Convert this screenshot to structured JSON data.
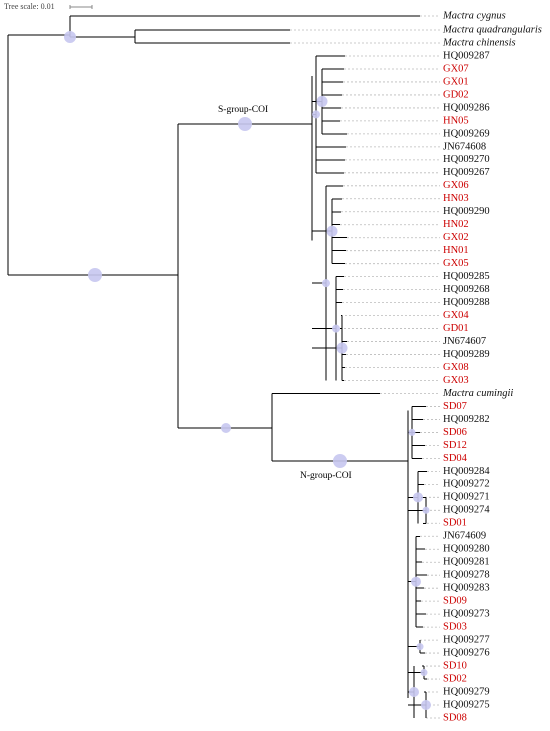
{
  "scale": {
    "label": "Tree scale: 0.01"
  },
  "colors": {
    "highlight": "#cc0000",
    "normal": "#111111",
    "node": "#c6c7ef"
  },
  "groups": {
    "s": "S-group-COI",
    "n": "N-group-COI"
  },
  "leaves": [
    {
      "name": "Mactra cygnus",
      "color": "black",
      "italic": true
    },
    {
      "name": "Mactra quadrangularis",
      "color": "black",
      "italic": true
    },
    {
      "name": "Mactra chinensis",
      "color": "black",
      "italic": true
    },
    {
      "name": "HQ009287",
      "color": "black"
    },
    {
      "name": "GX07",
      "color": "red"
    },
    {
      "name": "GX01",
      "color": "red"
    },
    {
      "name": "GD02",
      "color": "red"
    },
    {
      "name": "HQ009286",
      "color": "black"
    },
    {
      "name": "HN05",
      "color": "red"
    },
    {
      "name": "HQ009269",
      "color": "black"
    },
    {
      "name": "JN674608",
      "color": "black"
    },
    {
      "name": "HQ009270",
      "color": "black"
    },
    {
      "name": "HQ009267",
      "color": "black"
    },
    {
      "name": "GX06",
      "color": "red"
    },
    {
      "name": "HN03",
      "color": "red"
    },
    {
      "name": "HQ009290",
      "color": "black"
    },
    {
      "name": "HN02",
      "color": "red"
    },
    {
      "name": "GX02",
      "color": "red"
    },
    {
      "name": "HN01",
      "color": "red"
    },
    {
      "name": "GX05",
      "color": "red"
    },
    {
      "name": "HQ009285",
      "color": "black"
    },
    {
      "name": "HQ009268",
      "color": "black"
    },
    {
      "name": "HQ009288",
      "color": "black"
    },
    {
      "name": "GX04",
      "color": "red"
    },
    {
      "name": "GD01",
      "color": "red"
    },
    {
      "name": "JN674607",
      "color": "black"
    },
    {
      "name": "HQ009289",
      "color": "black"
    },
    {
      "name": "GX08",
      "color": "red"
    },
    {
      "name": "GX03",
      "color": "red"
    },
    {
      "name": "Mactra cumingii",
      "color": "black",
      "italic": true
    },
    {
      "name": "SD07",
      "color": "red"
    },
    {
      "name": "HQ009282",
      "color": "black"
    },
    {
      "name": "SD06",
      "color": "red"
    },
    {
      "name": "SD12",
      "color": "red"
    },
    {
      "name": "SD04",
      "color": "red"
    },
    {
      "name": "HQ009284",
      "color": "black"
    },
    {
      "name": "HQ009272",
      "color": "black"
    },
    {
      "name": "HQ009271",
      "color": "black"
    },
    {
      "name": "HQ009274",
      "color": "black"
    },
    {
      "name": "SD01",
      "color": "red"
    },
    {
      "name": "JN674609",
      "color": "black"
    },
    {
      "name": "HQ009280",
      "color": "black"
    },
    {
      "name": "HQ009281",
      "color": "black"
    },
    {
      "name": "HQ009278",
      "color": "black"
    },
    {
      "name": "HQ009283",
      "color": "black"
    },
    {
      "name": "SD09",
      "color": "red"
    },
    {
      "name": "HQ009273",
      "color": "black"
    },
    {
      "name": "SD03",
      "color": "red"
    },
    {
      "name": "HQ009277",
      "color": "black"
    },
    {
      "name": "HQ009276",
      "color": "black"
    },
    {
      "name": "SD10",
      "color": "red"
    },
    {
      "name": "SD02",
      "color": "red"
    },
    {
      "name": "HQ009279",
      "color": "black"
    },
    {
      "name": "HQ009275",
      "color": "black"
    },
    {
      "name": "SD08",
      "color": "red"
    }
  ]
}
